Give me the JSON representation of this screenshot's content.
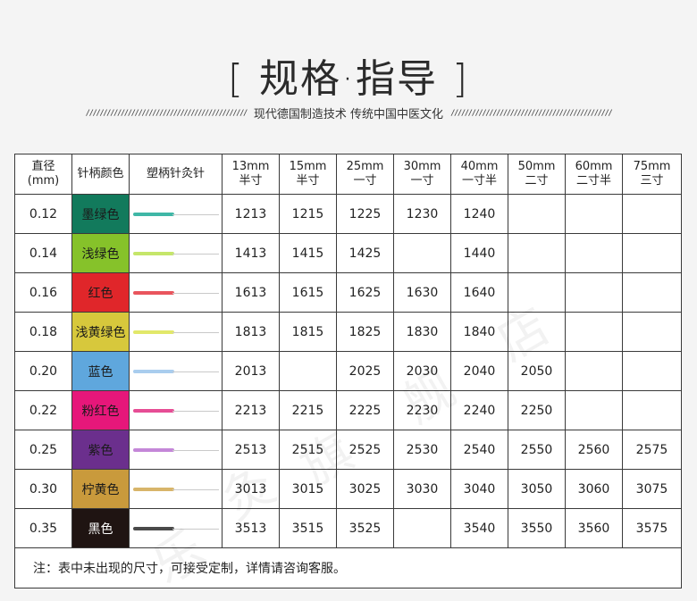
{
  "title": "[ 规格·指导 ]",
  "subtitle": {
    "left_slashes": "//////////////////////////////////////////////",
    "text": "现代德国制造技术  传统中国中医文化",
    "right_slashes": "//////////////////////////////////////////////"
  },
  "table": {
    "headers": {
      "diameter": [
        "直径",
        "(mm)"
      ],
      "handle_color": "针柄颜色",
      "needle": "塑柄针灸针",
      "lengths": [
        [
          "13mm",
          "半寸"
        ],
        [
          "15mm",
          "半寸"
        ],
        [
          "25mm",
          "一寸"
        ],
        [
          "30mm",
          "一寸"
        ],
        [
          "40mm",
          "一寸半"
        ],
        [
          "50mm",
          "二寸"
        ],
        [
          "60mm",
          "二寸半"
        ],
        [
          "75mm",
          "三寸"
        ]
      ]
    },
    "rows": [
      {
        "diameter": "0.12",
        "color_name": "墨绿色",
        "bg": "#127a5c",
        "handle": "#3fb7a6",
        "light": false,
        "codes": [
          "1213",
          "1215",
          "1225",
          "1230",
          "1240",
          "",
          "",
          ""
        ]
      },
      {
        "diameter": "0.14",
        "color_name": "浅绿色",
        "bg": "#86c22a",
        "handle": "#c5e66a",
        "light": false,
        "codes": [
          "1413",
          "1415",
          "1425",
          "",
          "1440",
          "",
          "",
          ""
        ]
      },
      {
        "diameter": "0.16",
        "color_name": "红色",
        "bg": "#e0262a",
        "handle": "#e9555d",
        "light": false,
        "codes": [
          "1613",
          "1615",
          "1625",
          "1630",
          "1640",
          "",
          "",
          ""
        ]
      },
      {
        "diameter": "0.18",
        "color_name": "浅黄绿色",
        "bg": "#d7c83c",
        "handle": "#e2e86a",
        "light": false,
        "codes": [
          "1813",
          "1815",
          "1825",
          "1830",
          "1840",
          "",
          "",
          ""
        ]
      },
      {
        "diameter": "0.20",
        "color_name": "蓝色",
        "bg": "#5fa7dd",
        "handle": "#a9cdee",
        "light": false,
        "codes": [
          "2013",
          "",
          "2025",
          "2030",
          "2040",
          "2050",
          "",
          ""
        ]
      },
      {
        "diameter": "0.22",
        "color_name": "粉红色",
        "bg": "#e6177a",
        "handle": "#e64d95",
        "light": false,
        "codes": [
          "2213",
          "2215",
          "2225",
          "2230",
          "2240",
          "2250",
          "",
          ""
        ]
      },
      {
        "diameter": "0.25",
        "color_name": "紫色",
        "bg": "#6b2f8d",
        "handle": "#c487d8",
        "light": false,
        "codes": [
          "2513",
          "2515",
          "2525",
          "2530",
          "2540",
          "2550",
          "2560",
          "2575"
        ]
      },
      {
        "diameter": "0.30",
        "color_name": "柠黄色",
        "bg": "#c99a3c",
        "handle": "#d8b56a",
        "light": false,
        "codes": [
          "3013",
          "3015",
          "3025",
          "3030",
          "3040",
          "3050",
          "3060",
          "3075"
        ]
      },
      {
        "diameter": "0.35",
        "color_name": "黑色",
        "bg": "#1f1412",
        "handle": "#4a4a4a",
        "light": true,
        "codes": [
          "3513",
          "3515",
          "3525",
          "",
          "3540",
          "3550",
          "3560",
          "3575"
        ]
      }
    ],
    "note": "注：表中未出现的尺寸，可接受定制，详情请咨询客服。"
  },
  "watermark": [
    "乐",
    "灸",
    "旗",
    "舰",
    "店"
  ]
}
